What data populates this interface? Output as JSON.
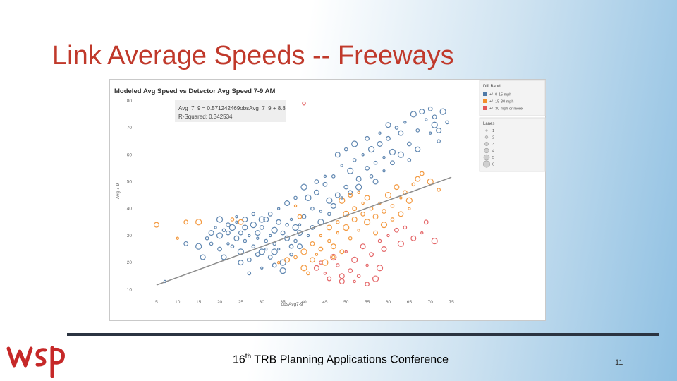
{
  "slide": {
    "title": "Link Average Speeds -- Freeways",
    "footer_num": "16",
    "footer_sup": "th",
    "footer_rest": " TRB Planning Applications Conference",
    "page_number": "11",
    "logo_text": "wsp"
  },
  "colors": {
    "title": "#c0392b",
    "blue": "#4e79a7",
    "orange": "#f28e2b",
    "red": "#e15759",
    "trend": "#8c8c8c",
    "logo": "#c62828"
  },
  "chart_data": {
    "type": "scatter",
    "title": "Modeled Avg Speed vs Detector Avg Speed 7-9 AM",
    "xlabel": "obsAvg7-9",
    "ylabel": "Avg 7-9",
    "xlim": [
      2,
      78
    ],
    "ylim": [
      8,
      81
    ],
    "x_ticks": [
      5,
      10,
      15,
      20,
      25,
      30,
      35,
      40,
      45,
      50,
      55,
      60,
      65,
      70,
      75
    ],
    "y_ticks": [
      10,
      20,
      30,
      40,
      50,
      60,
      70,
      80
    ],
    "grid": false,
    "equation": "Avg_7_9 = 0.571242469obsAvg_7_9 + 8.8",
    "r_squared": "R-Squared: 0.342534",
    "trend_line": {
      "slope": 0.571242469,
      "intercept": 8.8,
      "x_range": [
        5,
        75
      ]
    },
    "legend_placement": "right",
    "legend_color": {
      "title": "Diff Band",
      "items": [
        {
          "label": "+/- 0-15 mph",
          "color": "#4e79a7"
        },
        {
          "label": "+/- 15-30 mph",
          "color": "#f28e2b"
        },
        {
          "label": "+/- 30 mph or more",
          "color": "#e15759"
        }
      ]
    },
    "legend_size": {
      "title": "Lanes",
      "items": [
        "1",
        "2",
        "3",
        "4",
        "5",
        "6"
      ]
    },
    "series": [
      {
        "name": "+/- 0-15 mph",
        "points": [
          [
            7,
            13
          ],
          [
            12,
            27
          ],
          [
            15,
            26
          ],
          [
            17,
            29
          ],
          [
            18,
            31
          ],
          [
            19,
            33
          ],
          [
            20,
            25
          ],
          [
            20,
            30
          ],
          [
            21,
            32
          ],
          [
            21,
            22
          ],
          [
            22,
            27
          ],
          [
            22,
            31
          ],
          [
            23,
            33
          ],
          [
            23,
            26
          ],
          [
            24,
            29
          ],
          [
            24,
            35
          ],
          [
            25,
            31
          ],
          [
            25,
            24
          ],
          [
            26,
            28
          ],
          [
            26,
            33
          ],
          [
            27,
            30
          ],
          [
            27,
            21
          ],
          [
            28,
            34
          ],
          [
            28,
            26
          ],
          [
            29,
            31
          ],
          [
            29,
            29
          ],
          [
            30,
            33
          ],
          [
            30,
            24
          ],
          [
            31,
            28
          ],
          [
            31,
            36
          ],
          [
            32,
            30
          ],
          [
            32,
            22
          ],
          [
            33,
            32
          ],
          [
            33,
            27
          ],
          [
            34,
            35
          ],
          [
            34,
            25
          ],
          [
            35,
            31
          ],
          [
            35,
            20
          ],
          [
            36,
            34
          ],
          [
            36,
            29
          ],
          [
            37,
            36
          ],
          [
            37,
            26
          ],
          [
            38,
            33
          ],
          [
            38,
            28
          ],
          [
            39,
            31
          ],
          [
            39,
            34
          ],
          [
            40,
            37
          ],
          [
            41,
            44
          ],
          [
            42,
            40
          ],
          [
            43,
            46
          ],
          [
            44,
            39
          ],
          [
            45,
            49
          ],
          [
            46,
            43
          ],
          [
            47,
            52
          ],
          [
            48,
            45
          ],
          [
            49,
            56
          ],
          [
            50,
            48
          ],
          [
            51,
            54
          ],
          [
            52,
            58
          ],
          [
            53,
            51
          ],
          [
            54,
            60
          ],
          [
            55,
            55
          ],
          [
            56,
            62
          ],
          [
            57,
            57
          ],
          [
            58,
            64
          ],
          [
            59,
            59
          ],
          [
            60,
            66
          ],
          [
            61,
            61
          ],
          [
            62,
            70
          ],
          [
            63,
            68
          ],
          [
            64,
            72
          ],
          [
            65,
            64
          ],
          [
            66,
            75
          ],
          [
            67,
            69
          ],
          [
            68,
            76
          ],
          [
            69,
            73
          ],
          [
            70,
            77
          ],
          [
            71,
            71
          ],
          [
            72,
            65
          ],
          [
            60,
            71
          ],
          [
            58,
            68
          ],
          [
            55,
            66
          ],
          [
            52,
            64
          ],
          [
            50,
            62
          ],
          [
            48,
            60
          ],
          [
            45,
            52
          ],
          [
            43,
            50
          ],
          [
            40,
            48
          ],
          [
            38,
            44
          ],
          [
            36,
            42
          ],
          [
            34,
            40
          ],
          [
            32,
            38
          ],
          [
            30,
            36
          ],
          [
            28,
            38
          ],
          [
            26,
            36
          ],
          [
            24,
            37
          ],
          [
            22,
            34
          ],
          [
            20,
            36
          ],
          [
            18,
            27
          ],
          [
            16,
            22
          ],
          [
            30,
            18
          ],
          [
            33,
            19
          ],
          [
            35,
            17
          ],
          [
            27,
            16
          ],
          [
            25,
            20
          ],
          [
            31,
            25
          ],
          [
            29,
            23
          ],
          [
            33,
            24
          ],
          [
            37,
            23
          ],
          [
            39,
            26
          ],
          [
            41,
            30
          ],
          [
            42,
            33
          ],
          [
            44,
            35
          ],
          [
            46,
            38
          ],
          [
            47,
            41
          ],
          [
            49,
            44
          ],
          [
            51,
            46
          ],
          [
            53,
            48
          ],
          [
            56,
            52
          ],
          [
            57,
            50
          ],
          [
            59,
            54
          ],
          [
            61,
            57
          ],
          [
            63,
            60
          ],
          [
            65,
            58
          ],
          [
            67,
            62
          ],
          [
            70,
            68
          ],
          [
            71,
            74
          ],
          [
            73,
            76
          ],
          [
            74,
            72
          ],
          [
            72,
            69
          ]
        ]
      },
      {
        "name": "+/- 15-30 mph",
        "points": [
          [
            5,
            34
          ],
          [
            10,
            29
          ],
          [
            12,
            35
          ],
          [
            15,
            35
          ],
          [
            23,
            36
          ],
          [
            25,
            35
          ],
          [
            38,
            41
          ],
          [
            39,
            37
          ],
          [
            40,
            18
          ],
          [
            41,
            16
          ],
          [
            42,
            21
          ],
          [
            43,
            23
          ],
          [
            44,
            25
          ],
          [
            45,
            20
          ],
          [
            46,
            28
          ],
          [
            47,
            26
          ],
          [
            48,
            31
          ],
          [
            49,
            24
          ],
          [
            50,
            33
          ],
          [
            51,
            29
          ],
          [
            52,
            36
          ],
          [
            53,
            32
          ],
          [
            54,
            38
          ],
          [
            55,
            35
          ],
          [
            56,
            40
          ],
          [
            57,
            37
          ],
          [
            58,
            42
          ],
          [
            59,
            39
          ],
          [
            60,
            45
          ],
          [
            61,
            41
          ],
          [
            62,
            48
          ],
          [
            63,
            44
          ],
          [
            64,
            46
          ],
          [
            65,
            43
          ],
          [
            66,
            49
          ],
          [
            67,
            51
          ],
          [
            54,
            42
          ],
          [
            52,
            40
          ],
          [
            50,
            38
          ],
          [
            48,
            35
          ],
          [
            46,
            33
          ],
          [
            44,
            30
          ],
          [
            42,
            27
          ],
          [
            40,
            24
          ],
          [
            38,
            22
          ],
          [
            36,
            21
          ],
          [
            34,
            20
          ],
          [
            57,
            31
          ],
          [
            59,
            34
          ],
          [
            61,
            36
          ],
          [
            63,
            38
          ],
          [
            65,
            40
          ],
          [
            68,
            53
          ],
          [
            70,
            50
          ],
          [
            72,
            47
          ],
          [
            55,
            44
          ],
          [
            53,
            46
          ],
          [
            51,
            45
          ],
          [
            49,
            43
          ],
          [
            47,
            22
          ]
        ]
      },
      {
        "name": "+/- 30 mph or more",
        "points": [
          [
            40,
            79
          ],
          [
            43,
            18
          ],
          [
            45,
            16
          ],
          [
            46,
            14
          ],
          [
            47,
            22
          ],
          [
            48,
            19
          ],
          [
            49,
            13
          ],
          [
            50,
            24
          ],
          [
            51,
            17
          ],
          [
            52,
            21
          ],
          [
            53,
            15
          ],
          [
            54,
            26
          ],
          [
            55,
            19
          ],
          [
            56,
            23
          ],
          [
            57,
            14
          ],
          [
            58,
            28
          ],
          [
            59,
            25
          ],
          [
            60,
            30
          ],
          [
            62,
            32
          ],
          [
            63,
            27
          ],
          [
            64,
            33
          ],
          [
            66,
            29
          ],
          [
            68,
            31
          ],
          [
            69,
            35
          ],
          [
            71,
            28
          ],
          [
            44,
            20
          ],
          [
            49,
            15
          ],
          [
            52,
            13
          ],
          [
            55,
            12
          ],
          [
            58,
            18
          ]
        ]
      }
    ]
  }
}
